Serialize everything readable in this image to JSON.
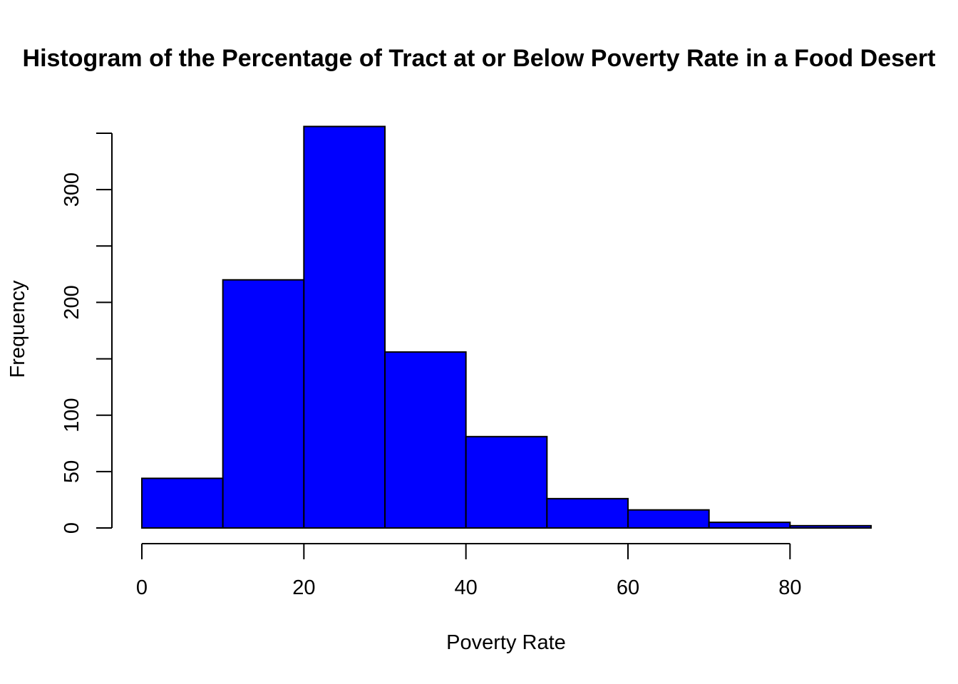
{
  "chart_data": {
    "type": "bar",
    "title": "Histogram of the Percentage of Tract at or Below Poverty Rate in a Food Desert",
    "xlabel": "Poverty Rate",
    "ylabel": "Frequency",
    "bins": [
      {
        "start": 0,
        "end": 10,
        "count": 44
      },
      {
        "start": 10,
        "end": 20,
        "count": 220
      },
      {
        "start": 20,
        "end": 30,
        "count": 356
      },
      {
        "start": 30,
        "end": 40,
        "count": 156
      },
      {
        "start": 40,
        "end": 50,
        "count": 81
      },
      {
        "start": 50,
        "end": 60,
        "count": 26
      },
      {
        "start": 60,
        "end": 70,
        "count": 16
      },
      {
        "start": 70,
        "end": 80,
        "count": 5
      },
      {
        "start": 80,
        "end": 90,
        "count": 2
      }
    ],
    "x_ticks": [
      0,
      20,
      40,
      60,
      80
    ],
    "y_ticks": [
      0,
      50,
      100,
      150,
      200,
      250,
      300,
      350
    ],
    "y_tick_labels": [
      "0",
      "50",
      "100",
      "",
      "200",
      "",
      "300",
      ""
    ],
    "xlim": [
      0,
      90
    ],
    "ylim": [
      0,
      350
    ],
    "bar_color": "#0000ff",
    "border_color": "#000000",
    "grid": false,
    "legend": "none"
  }
}
